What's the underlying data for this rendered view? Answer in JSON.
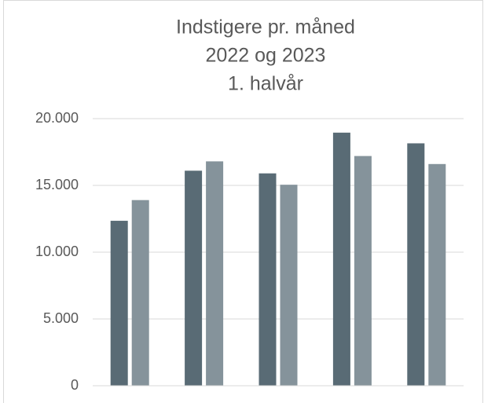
{
  "chart_data": {
    "type": "bar",
    "title": [
      "Indstigere pr. måned",
      "2022 og 2023",
      "1. halvår"
    ],
    "categories": [
      null,
      null,
      null,
      null,
      null
    ],
    "series": [
      {
        "color": "#596b75",
        "values": [
          12350,
          16100,
          15900,
          18950,
          18150
        ]
      },
      {
        "color": "#85939b",
        "values": [
          13900,
          16800,
          15050,
          17200,
          16600
        ]
      }
    ],
    "ylim": [
      0,
      20000
    ],
    "yticks": [
      0,
      {
        "value": 5000,
        "label": "5.000"
      },
      {
        "value": 10000,
        "label": "10.000"
      },
      {
        "value": 15000,
        "label": "15.000"
      },
      {
        "value": 20000,
        "label": "20.000"
      }
    ],
    "grid": true
  }
}
